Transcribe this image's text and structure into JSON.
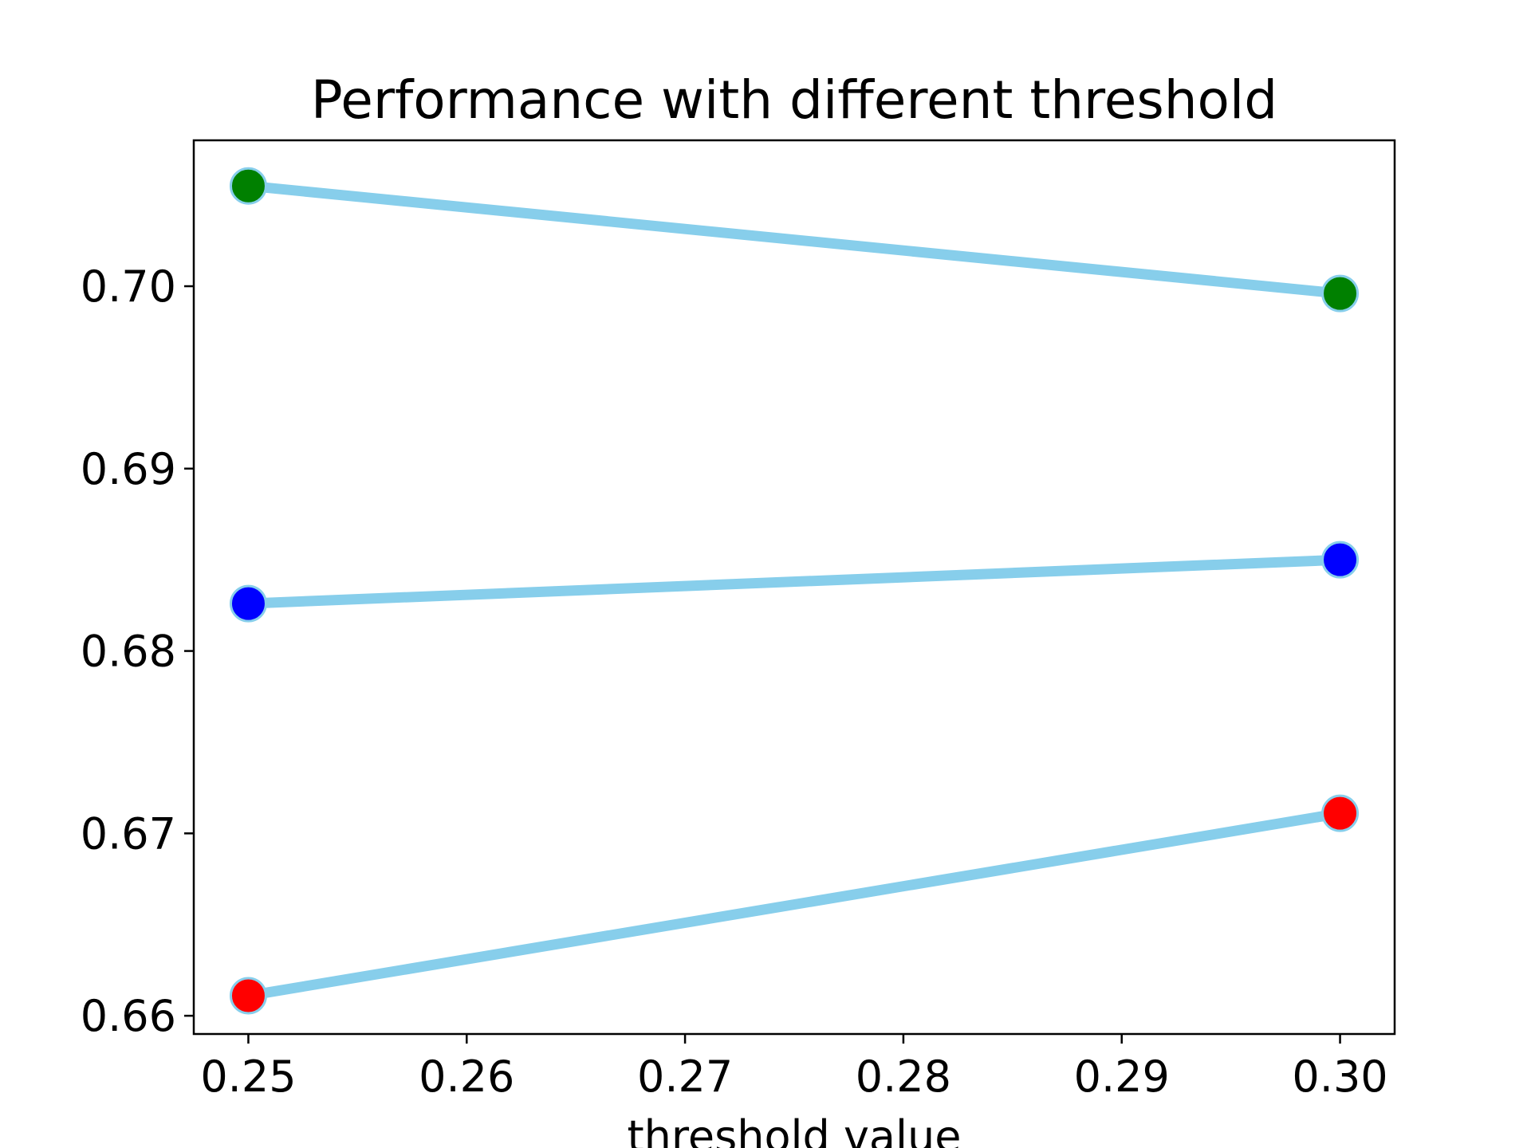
{
  "chart_data": {
    "type": "line",
    "title": "Performance with different threshold",
    "xlabel": "threshold value",
    "ylabel": "",
    "x": [
      0.25,
      0.3
    ],
    "xlim": [
      0.2475,
      0.3025
    ],
    "ylim": [
      0.659,
      0.708
    ],
    "x_ticks": [
      "0.25",
      "0.26",
      "0.27",
      "0.28",
      "0.29",
      "0.30"
    ],
    "y_ticks": [
      "0.66",
      "0.67",
      "0.68",
      "0.69",
      "0.70"
    ],
    "grid": false,
    "line_color": "#87CEEB",
    "series": [
      {
        "values": [
          0.7055,
          0.6996
        ],
        "marker_color": "#008000"
      },
      {
        "values": [
          0.6826,
          0.685
        ],
        "marker_color": "#0000FF"
      },
      {
        "values": [
          0.6611,
          0.6711
        ],
        "marker_color": "#FF0000"
      }
    ]
  }
}
